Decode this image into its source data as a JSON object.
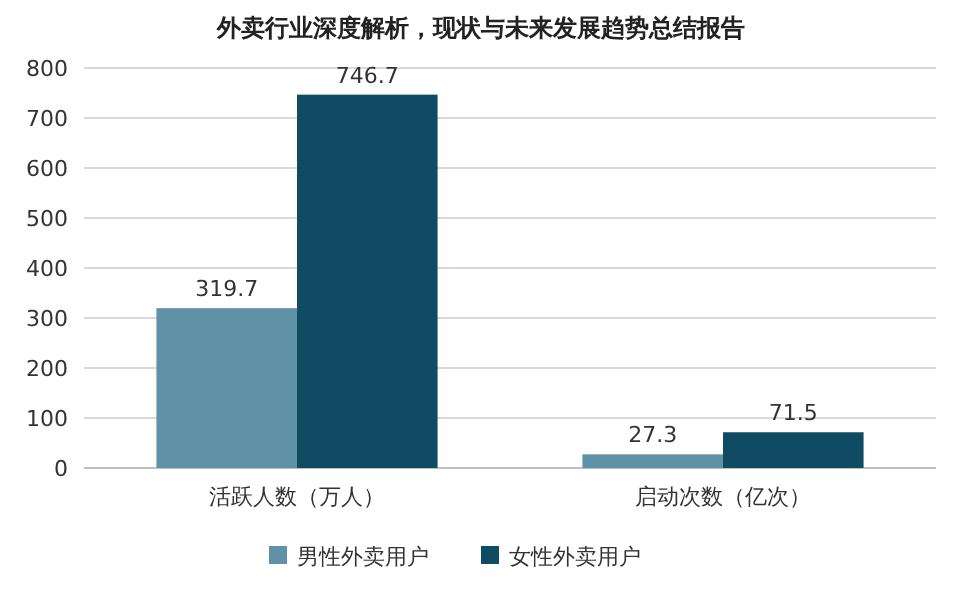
{
  "chart_data": {
    "type": "bar",
    "title": "外卖行业深度解析，现状与未来发展趋势总结报告",
    "categories": [
      "活跃人数（万人）",
      "启动次数（亿次）"
    ],
    "series": [
      {
        "name": "男性外卖用户",
        "color": "#5f92a6",
        "values": [
          319.7,
          27.3
        ]
      },
      {
        "name": "女性外卖用户",
        "color": "#0f4c63",
        "values": [
          746.7,
          71.5
        ]
      }
    ],
    "ylim": [
      0,
      800
    ],
    "yticks": [
      0,
      100,
      200,
      300,
      400,
      500,
      600,
      700,
      800
    ],
    "grid": "y",
    "legend": "bottom",
    "data_labels": true
  }
}
